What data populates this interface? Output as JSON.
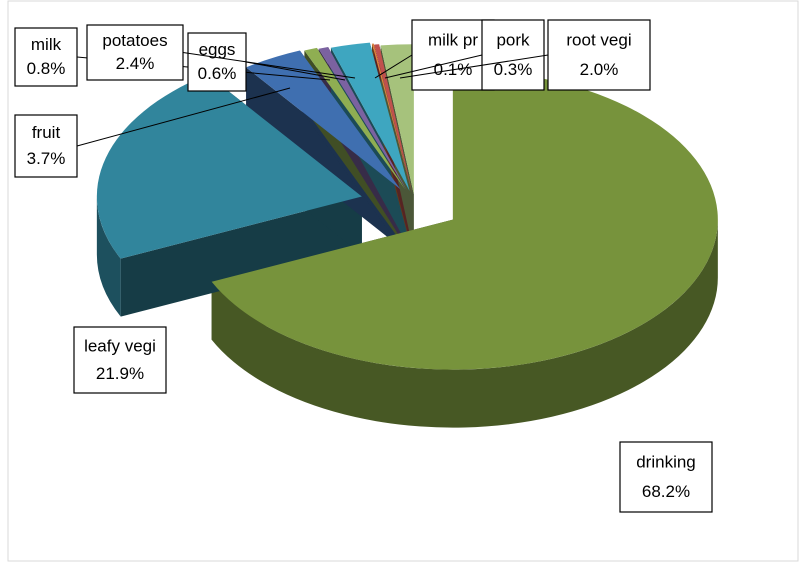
{
  "chart_data": {
    "type": "pie3d",
    "categories": [
      "drinking",
      "leafy vegi",
      "fruit",
      "milk",
      "eggs",
      "potatoes",
      "milk pr",
      "pork",
      "root vegi"
    ],
    "values": [
      68.2,
      21.9,
      3.7,
      0.8,
      0.6,
      2.4,
      0.1,
      0.3,
      2.0
    ],
    "value_labels": [
      "68.2%",
      "21.9%",
      "3.7%",
      "0.8%",
      "0.6%",
      "2.4%",
      "0.1%",
      "0.3%",
      "2.0%"
    ],
    "colors": [
      "#77933c",
      "#31859c",
      "#3f6fb0",
      "#8fae52",
      "#7b62a0",
      "#3ea6c0",
      "#e0803a",
      "#c0504d",
      "#a6c27c"
    ]
  }
}
